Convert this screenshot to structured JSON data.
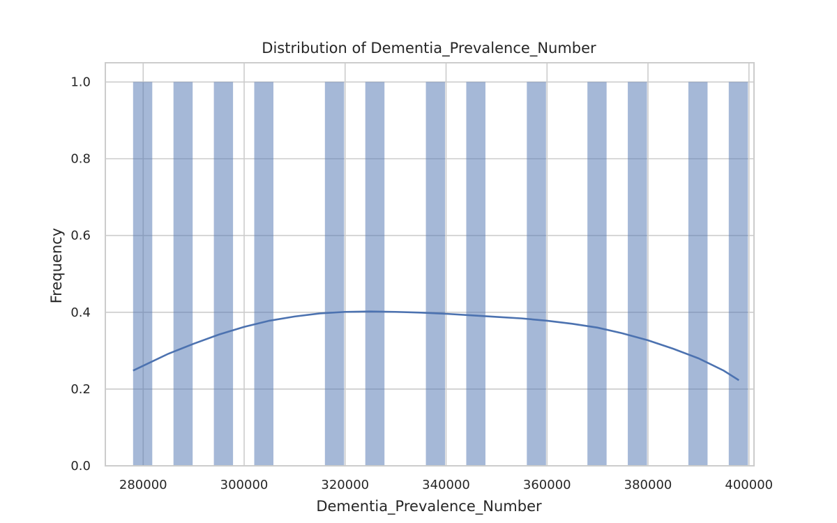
{
  "chart_data": {
    "type": "histogram",
    "title": "Distribution of Dementia_Prevalence_Number",
    "xlabel": "Dementia_Prevalence_Number",
    "ylabel": "Frequency",
    "xlim": [
      272500,
      401000
    ],
    "ylim": [
      0,
      1.05
    ],
    "grid": true,
    "legend": "none",
    "bar_color": "#4c72b0",
    "bar_opacity": 0.5,
    "line_color": "#4c72b0",
    "bin_width": 3800,
    "bars": [
      {
        "x": 279900,
        "value": 1.0
      },
      {
        "x": 287900,
        "value": 1.0
      },
      {
        "x": 295900,
        "value": 1.0
      },
      {
        "x": 303900,
        "value": 1.0
      },
      {
        "x": 317900,
        "value": 1.0
      },
      {
        "x": 325900,
        "value": 1.0
      },
      {
        "x": 337900,
        "value": 1.0
      },
      {
        "x": 345900,
        "value": 1.0
      },
      {
        "x": 357900,
        "value": 1.0
      },
      {
        "x": 369900,
        "value": 1.0
      },
      {
        "x": 377900,
        "value": 1.0
      },
      {
        "x": 389900,
        "value": 1.0
      },
      {
        "x": 397900,
        "value": 1.0
      }
    ],
    "kde": {
      "x": [
        278000,
        285000,
        290000,
        295000,
        300000,
        305000,
        310000,
        315000,
        320000,
        325000,
        330000,
        335000,
        340000,
        345000,
        350000,
        355000,
        360000,
        365000,
        370000,
        375000,
        380000,
        385000,
        390000,
        395000,
        398000
      ],
      "y": [
        0.248,
        0.292,
        0.318,
        0.342,
        0.362,
        0.378,
        0.389,
        0.397,
        0.401,
        0.402,
        0.401,
        0.399,
        0.396,
        0.392,
        0.388,
        0.384,
        0.378,
        0.37,
        0.36,
        0.345,
        0.327,
        0.305,
        0.28,
        0.248,
        0.223
      ]
    },
    "x_ticks": [
      280000,
      300000,
      320000,
      340000,
      360000,
      380000,
      400000
    ],
    "x_tick_labels": [
      "280000",
      "300000",
      "320000",
      "340000",
      "360000",
      "380000",
      "400000"
    ],
    "y_ticks": [
      0.0,
      0.2,
      0.4,
      0.6,
      0.8,
      1.0
    ],
    "y_tick_labels": [
      "0.0",
      "0.2",
      "0.4",
      "0.6",
      "0.8",
      "1.0"
    ]
  }
}
